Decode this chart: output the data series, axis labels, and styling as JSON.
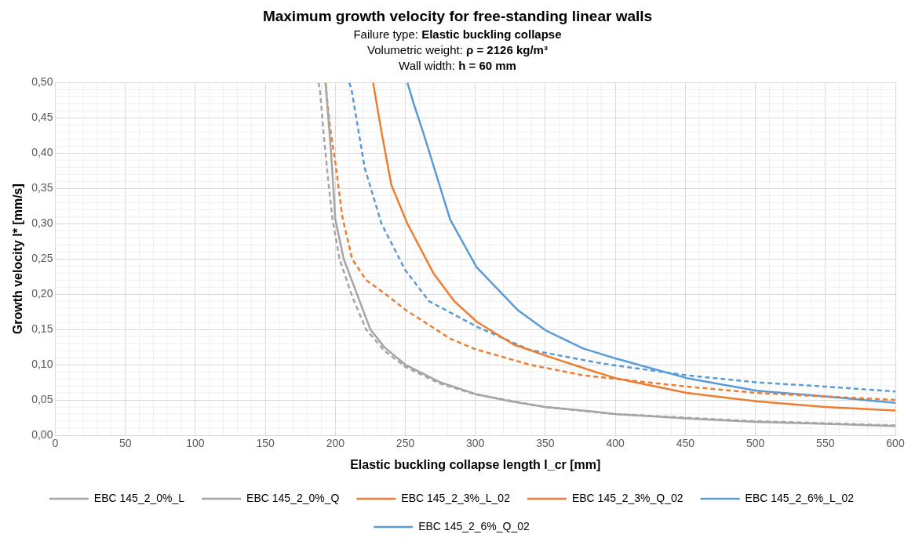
{
  "chart_data": {
    "type": "line",
    "title": "Maximum growth velocity for free-standing linear walls",
    "subtitle": [
      "Failure type: Elastic buckling collapse",
      "Volumetric weight: ρ = 2126 kg/m³",
      "Wall width: h = 60 mm"
    ],
    "xlabel": "Elastic buckling collapse length l_cr [mm]",
    "ylabel": "Growth velocity l* [mm/s]",
    "xlim": [
      0,
      600
    ],
    "xticks": [
      0,
      50,
      100,
      150,
      200,
      250,
      300,
      350,
      400,
      450,
      500,
      550,
      600
    ],
    "ylim": [
      0,
      0.5
    ],
    "yticks": [
      {
        "value": 0,
        "label": "0,00"
      },
      {
        "value": 0.05,
        "label": "0,05"
      },
      {
        "value": 0.1,
        "label": "0,10"
      },
      {
        "value": 0.15,
        "label": "0,15"
      },
      {
        "value": 0.2,
        "label": "0,20"
      },
      {
        "value": 0.25,
        "label": "0,25"
      },
      {
        "value": 0.3,
        "label": "0,30"
      },
      {
        "value": 0.35,
        "label": "0,35"
      },
      {
        "value": 0.4,
        "label": "0,40"
      },
      {
        "value": 0.45,
        "label": "0,45"
      },
      {
        "value": 0.5,
        "label": "0,50"
      }
    ],
    "grid": true,
    "legend": "bottom",
    "marker": "none",
    "series": [
      {
        "name": "EBC 145_2_0%_L",
        "color": "#a5a5a5",
        "line_style": "solid",
        "x": [
          193,
          195,
          197,
          200,
          206,
          215.5,
          225,
          235,
          250,
          275,
          301,
          325,
          350,
          387,
          400,
          450,
          500,
          550,
          600
        ],
        "values": [
          0.5,
          0.45,
          0.4,
          0.306,
          0.25,
          0.2,
          0.15,
          0.125,
          0.1,
          0.075,
          0.058,
          0.048,
          0.04,
          0.033,
          0.03,
          0.024,
          0.019,
          0.016,
          0.013
        ]
      },
      {
        "name": "EBC 145_2_0%_Q",
        "color": "#a5a5a5",
        "line_style": "dashed",
        "x": [
          188,
          189,
          192,
          195,
          198,
          203,
          212,
          222,
          235,
          250,
          275,
          300,
          350,
          400,
          450,
          500,
          550,
          600
        ],
        "values": [
          0.5,
          0.49,
          0.42,
          0.36,
          0.306,
          0.25,
          0.197,
          0.15,
          0.12,
          0.097,
          0.073,
          0.058,
          0.04,
          0.03,
          0.025,
          0.02,
          0.017,
          0.014
        ]
      },
      {
        "name": "EBC 145_2_3%_L_02",
        "color": "#ed7d31",
        "line_style": "solid",
        "x": [
          227,
          233,
          240,
          251.5,
          270,
          285,
          301,
          327,
          350,
          387,
          400,
          451,
          501,
          550,
          600
        ],
        "values": [
          0.5,
          0.43,
          0.355,
          0.3,
          0.23,
          0.19,
          0.161,
          0.129,
          0.113,
          0.089,
          0.081,
          0.06,
          0.048,
          0.04,
          0.035
        ]
      },
      {
        "name": "EBC 145_2_3%_Q_02",
        "color": "#ed7d31",
        "line_style": "dashed",
        "x": [
          193,
          196,
          200,
          205,
          212,
          222,
          236,
          250,
          282,
          300,
          339,
          377,
          400,
          451,
          501,
          550,
          600
        ],
        "values": [
          0.5,
          0.44,
          0.387,
          0.31,
          0.25,
          0.22,
          0.2,
          0.178,
          0.137,
          0.122,
          0.1,
          0.085,
          0.08,
          0.069,
          0.06,
          0.055,
          0.05
        ]
      },
      {
        "name": "EBC 145_2_6%_L_02",
        "color": "#5b9bd5",
        "line_style": "solid",
        "x": [
          251.5,
          256,
          263,
          282,
          301,
          330,
          350,
          377,
          400,
          451,
          501,
          550,
          600
        ],
        "values": [
          0.5,
          0.47,
          0.428,
          0.306,
          0.238,
          0.178,
          0.149,
          0.123,
          0.109,
          0.081,
          0.063,
          0.055,
          0.046
        ]
      },
      {
        "name": "EBC 145_2_6%_Q_02",
        "color": "#5b9bd5",
        "line_style": "dashed",
        "x": [
          210,
          211.6,
          221,
          233,
          250,
          267,
          301,
          339,
          387,
          400,
          451,
          501,
          550,
          600
        ],
        "values": [
          0.5,
          0.49,
          0.379,
          0.3,
          0.234,
          0.19,
          0.154,
          0.121,
          0.103,
          0.099,
          0.085,
          0.075,
          0.069,
          0.062
        ]
      }
    ]
  }
}
